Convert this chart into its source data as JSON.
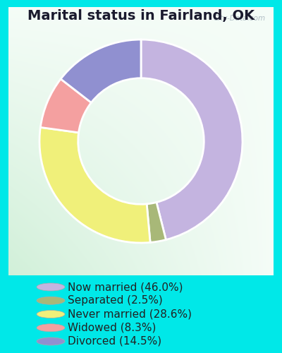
{
  "title": "Marital status in Fairland, OK",
  "slices": [
    {
      "label": "Now married (46.0%)",
      "value": 46.0,
      "color": "#c4b4e0"
    },
    {
      "label": "Separated (2.5%)",
      "value": 2.5,
      "color": "#a8b878"
    },
    {
      "label": "Never married (28.6%)",
      "value": 28.6,
      "color": "#f0f07a"
    },
    {
      "label": "Widowed (8.3%)",
      "value": 8.3,
      "color": "#f4a0a0"
    },
    {
      "label": "Divorced (14.5%)",
      "value": 14.5,
      "color": "#9090d0"
    }
  ],
  "background_outer": "#00e8e8",
  "watermark": "City-Data.com",
  "title_fontsize": 14,
  "legend_fontsize": 11,
  "startangle": 90,
  "donut_width": 0.38
}
